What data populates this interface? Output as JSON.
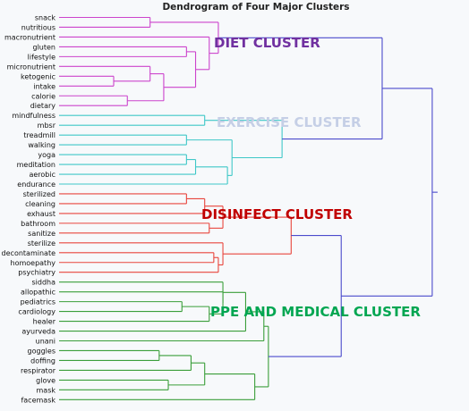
{
  "chart_data": {
    "type": "dendrogram",
    "title": "Dendrogram of Four Major Clusters",
    "orientation": "horizontal",
    "leaf_order": [
      "snack",
      "nutritious",
      "macronutrient",
      "gluten",
      "lifestyle",
      "micronutrient",
      "ketogenic",
      "intake",
      "calorie",
      "dietary",
      "mindfulness",
      "mbsr",
      "treadmill",
      "walking",
      "yoga",
      "meditation",
      "aerobic",
      "endurance",
      "sterilized",
      "cleaning",
      "exhaust",
      "bathroom",
      "sanitize",
      "sterilize",
      "decontaminate",
      "homoepathy",
      "psychiatry",
      "siddha",
      "allopathic",
      "pediatrics",
      "cardiology",
      "healer",
      "ayurveda",
      "unani",
      "goggles",
      "doffing",
      "respirator",
      "glove",
      "mask",
      "facemask"
    ],
    "clusters": [
      {
        "name": "DIET CLUSTER",
        "color": "#cc44cc",
        "label_color": "#7030a0",
        "leaves": [
          "snack",
          "nutritious",
          "macronutrient",
          "gluten",
          "lifestyle",
          "micronutrient",
          "ketogenic",
          "intake",
          "calorie",
          "dietary"
        ]
      },
      {
        "name": "EXERCISE CLUSTER",
        "color": "#3fc8c8",
        "label_color": "#c5cfe6",
        "leaves": [
          "mindfulness",
          "mbsr",
          "treadmill",
          "walking",
          "yoga",
          "meditation",
          "aerobic",
          "endurance"
        ]
      },
      {
        "name": "DISINFECT CLUSTER",
        "color": "#e8453c",
        "label_color": "#c00000",
        "leaves": [
          "sterilized",
          "cleaning",
          "exhaust",
          "bathroom",
          "sanitize",
          "sterilize",
          "decontaminate",
          "homoepathy",
          "psychiatry"
        ]
      },
      {
        "name": "PPE AND MEDICAL CLUSTER",
        "color": "#3a9e3a",
        "label_color": "#00a651",
        "leaves": [
          "siddha",
          "allopathic",
          "pediatrics",
          "cardiology",
          "healer",
          "ayurveda",
          "unani",
          "goggles",
          "doffing",
          "respirator",
          "glove",
          "mask",
          "facemask"
        ]
      }
    ],
    "link_color": "#4b4bcc",
    "merges": [
      {
        "a": "snack",
        "b": "nutritious",
        "h": 0.2,
        "c": "diet"
      },
      {
        "a": "gluten",
        "b": "lifestyle",
        "h": 0.28,
        "c": "diet"
      },
      {
        "a": "ketogenic",
        "b": "intake",
        "h": 0.12,
        "c": "diet"
      },
      {
        "a": "calorie",
        "b": "dietary",
        "h": 0.15,
        "c": "diet"
      },
      {
        "a": "micronutrient",
        "b": "ketogenic+intake",
        "h": 0.2,
        "c": "diet"
      },
      {
        "a": "micronutrient+ketogenic+intake",
        "b": "calorie+dietary",
        "h": 0.23,
        "c": "diet"
      },
      {
        "a": "gluten+lifestyle",
        "b": "micronutrient+ketogenic+intake+calorie+dietary",
        "h": 0.3,
        "c": "diet"
      },
      {
        "a": "macronutrient",
        "b": "gluten+lifestyle+micronutrient+ketogenic+intake+calorie+dietary",
        "h": 0.33,
        "c": "diet"
      },
      {
        "a": "snack+nutritious",
        "b": "macronutrient+gluten+lifestyle+micronutrient+ketogenic+intake+calorie+dietary",
        "h": 0.35,
        "c": "diet"
      },
      {
        "a": "mindfulness",
        "b": "mbsr",
        "h": 0.32,
        "c": "exercise"
      },
      {
        "a": "treadmill",
        "b": "walking",
        "h": 0.28,
        "c": "exercise"
      },
      {
        "a": "yoga",
        "b": "meditation",
        "h": 0.28,
        "c": "exercise"
      },
      {
        "a": "yoga+meditation",
        "b": "aerobic",
        "h": 0.3,
        "c": "exercise"
      },
      {
        "a": "yoga+meditation+aerobic",
        "b": "endurance",
        "h": 0.37,
        "c": "exercise"
      },
      {
        "a": "treadmill+walking",
        "b": "yoga+meditation+aerobic+endurance",
        "h": 0.38,
        "c": "exercise"
      },
      {
        "a": "mindfulness+mbsr",
        "b": "treadmill+walking+yoga+meditation+aerobic+endurance",
        "h": 0.49,
        "c": "exercise"
      },
      {
        "a": "sterilized",
        "b": "cleaning",
        "h": 0.28,
        "c": "disinfect"
      },
      {
        "a": "sterilized+cleaning",
        "b": "exhaust",
        "h": 0.32,
        "c": "disinfect"
      },
      {
        "a": "bathroom",
        "b": "sanitize",
        "h": 0.33,
        "c": "disinfect"
      },
      {
        "a": "sterilized+cleaning+exhaust",
        "b": "bathroom+sanitize",
        "h": 0.36,
        "c": "disinfect"
      },
      {
        "a": "decontaminate",
        "b": "homoepathy",
        "h": 0.34,
        "c": "disinfect"
      },
      {
        "a": "decontaminate+homoepathy",
        "b": "psychiatry",
        "h": 0.35,
        "c": "disinfect"
      },
      {
        "a": "sterilize",
        "b": "decontaminate+homoepathy+psychiatry",
        "h": 0.36,
        "c": "disinfect"
      },
      {
        "a": "sterilized+cleaning+exhaust+bathroom+sanitize",
        "b": "sterilize+decontaminate+homoepathy+psychiatry",
        "h": 0.51,
        "c": "disinfect"
      },
      {
        "a": "pediatrics",
        "b": "cardiology",
        "h": 0.27,
        "c": "ppe"
      },
      {
        "a": "pediatrics+cardiology",
        "b": "healer",
        "h": 0.33,
        "c": "ppe"
      },
      {
        "a": "allopathic",
        "b": "pediatrics+cardiology+healer",
        "h": 0.36,
        "c": "ppe"
      },
      {
        "a": "siddha",
        "b": "allopathic+pediatrics+cardiology+healer",
        "h": 0.36,
        "c": "ppe"
      },
      {
        "a": "siddha+allopathic+pediatrics+cardiology+healer",
        "b": "ayurveda",
        "h": 0.41,
        "c": "ppe"
      },
      {
        "a": "siddha+allopathic+pediatrics+cardiology+healer+ayurveda",
        "b": "unani",
        "h": 0.45,
        "c": "ppe"
      },
      {
        "a": "goggles",
        "b": "doffing",
        "h": 0.22,
        "c": "ppe"
      },
      {
        "a": "goggles+doffing",
        "b": "respirator",
        "h": 0.29,
        "c": "ppe"
      },
      {
        "a": "glove",
        "b": "mask",
        "h": 0.24,
        "c": "ppe"
      },
      {
        "a": "goggles+doffing+respirator",
        "b": "glove+mask",
        "h": 0.32,
        "c": "ppe"
      },
      {
        "a": "goggles+doffing+respirator+glove+mask",
        "b": "facemask",
        "h": 0.43,
        "c": "ppe"
      },
      {
        "a": "siddha+allopathic+pediatrics+cardiology+healer+ayurveda+unani",
        "b": "goggles+doffing+respirator+glove+mask+facemask",
        "h": 0.46,
        "c": "ppe"
      },
      {
        "a": "diet",
        "b": "exercise",
        "h": 0.71,
        "c": "link"
      },
      {
        "a": "disinfect",
        "b": "ppe",
        "h": 0.62,
        "c": "link"
      },
      {
        "a": "diet+exercise",
        "b": "disinfect+ppe",
        "h": 0.82,
        "c": "link"
      }
    ]
  }
}
